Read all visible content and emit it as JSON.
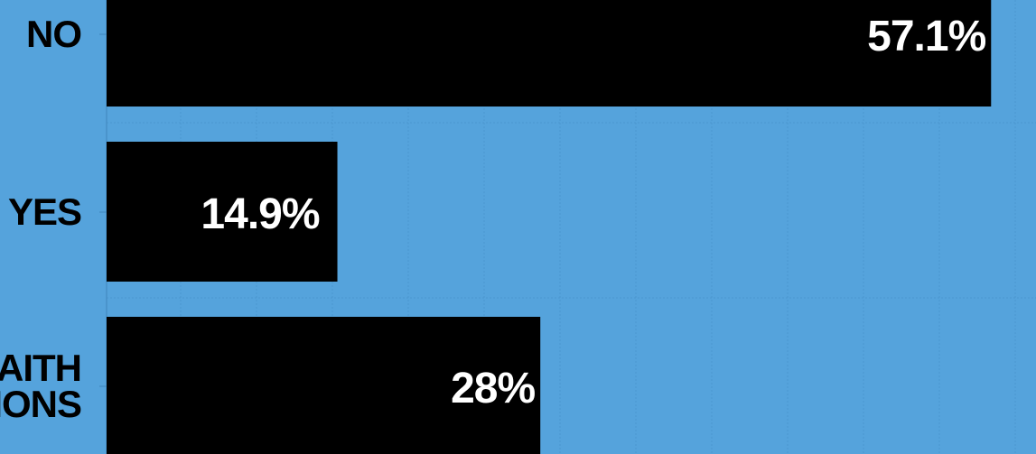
{
  "chart_data": {
    "type": "bar",
    "orientation": "horizontal",
    "categories": [
      "NO",
      "YES",
      "ONLY IN FAITH COMMUNITIES / CONGREGATIONS"
    ],
    "category_lines": [
      [
        "NO"
      ],
      [
        "YES"
      ],
      [
        "FAITH",
        "IONS"
      ]
    ],
    "values": [
      57.1,
      14.9,
      28
    ],
    "value_labels": [
      "57.1%",
      "14.9%",
      "28%"
    ],
    "xlim": [
      0,
      60
    ],
    "grid": true,
    "legend": "none",
    "colors": {
      "background": "#55a3dc",
      "bar": "#000000",
      "category_text": "#000000",
      "value_text": "#ffffff",
      "grid": "#4b97cf"
    }
  }
}
